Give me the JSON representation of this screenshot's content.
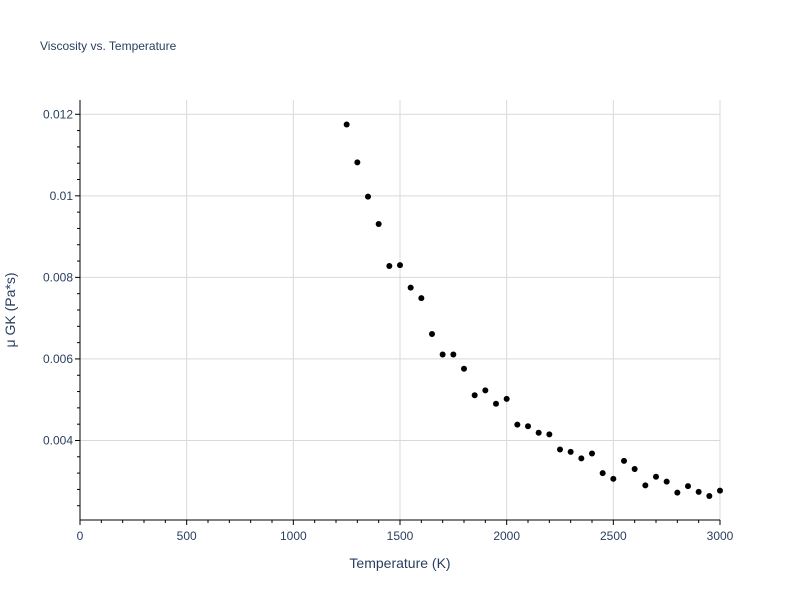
{
  "chart_data": {
    "type": "scatter",
    "title": "Viscosity vs. Temperature",
    "xlabel": "Temperature (K)",
    "ylabel": "μ GK (Pa*s)",
    "xlim": [
      0,
      3000
    ],
    "ylim": [
      0.00205,
      0.01235
    ],
    "x_ticks": [
      {
        "value": 0,
        "label": "0"
      },
      {
        "value": 500,
        "label": "500"
      },
      {
        "value": 1000,
        "label": "1000"
      },
      {
        "value": 1500,
        "label": "1500"
      },
      {
        "value": 2000,
        "label": "2000"
      },
      {
        "value": 2500,
        "label": "2500"
      },
      {
        "value": 3000,
        "label": "3000"
      }
    ],
    "y_ticks": [
      {
        "value": 0.004,
        "label": "0.004"
      },
      {
        "value": 0.006,
        "label": "0.006"
      },
      {
        "value": 0.008,
        "label": "0.008"
      },
      {
        "value": 0.01,
        "label": "0.01"
      },
      {
        "value": 0.012,
        "label": "0.012"
      }
    ],
    "grid": true,
    "marker_color": "#000000",
    "series": [
      {
        "x": [
          1250,
          1300,
          1350,
          1400,
          1450,
          1500,
          1550,
          1600,
          1650,
          1700,
          1750,
          1800,
          1850,
          1900,
          1950,
          2000,
          2050,
          2100,
          2150,
          2200,
          2250,
          2300,
          2350,
          2400,
          2450,
          2500,
          2550,
          2600,
          2650,
          2700,
          2750,
          2800,
          2850,
          2900,
          2950,
          3000
        ],
        "y": [
          0.01175,
          0.01082,
          0.00998,
          0.00931,
          0.00828,
          0.0083,
          0.00775,
          0.00749,
          0.00661,
          0.00611,
          0.00611,
          0.00576,
          0.00511,
          0.00523,
          0.0049,
          0.00502,
          0.00439,
          0.00435,
          0.00419,
          0.00415,
          0.00378,
          0.00372,
          0.00356,
          0.00368,
          0.0032,
          0.00306,
          0.0035,
          0.0033,
          0.0029,
          0.00311,
          0.00299,
          0.00272,
          0.00288,
          0.00274,
          0.00264,
          0.00277
        ]
      }
    ]
  }
}
